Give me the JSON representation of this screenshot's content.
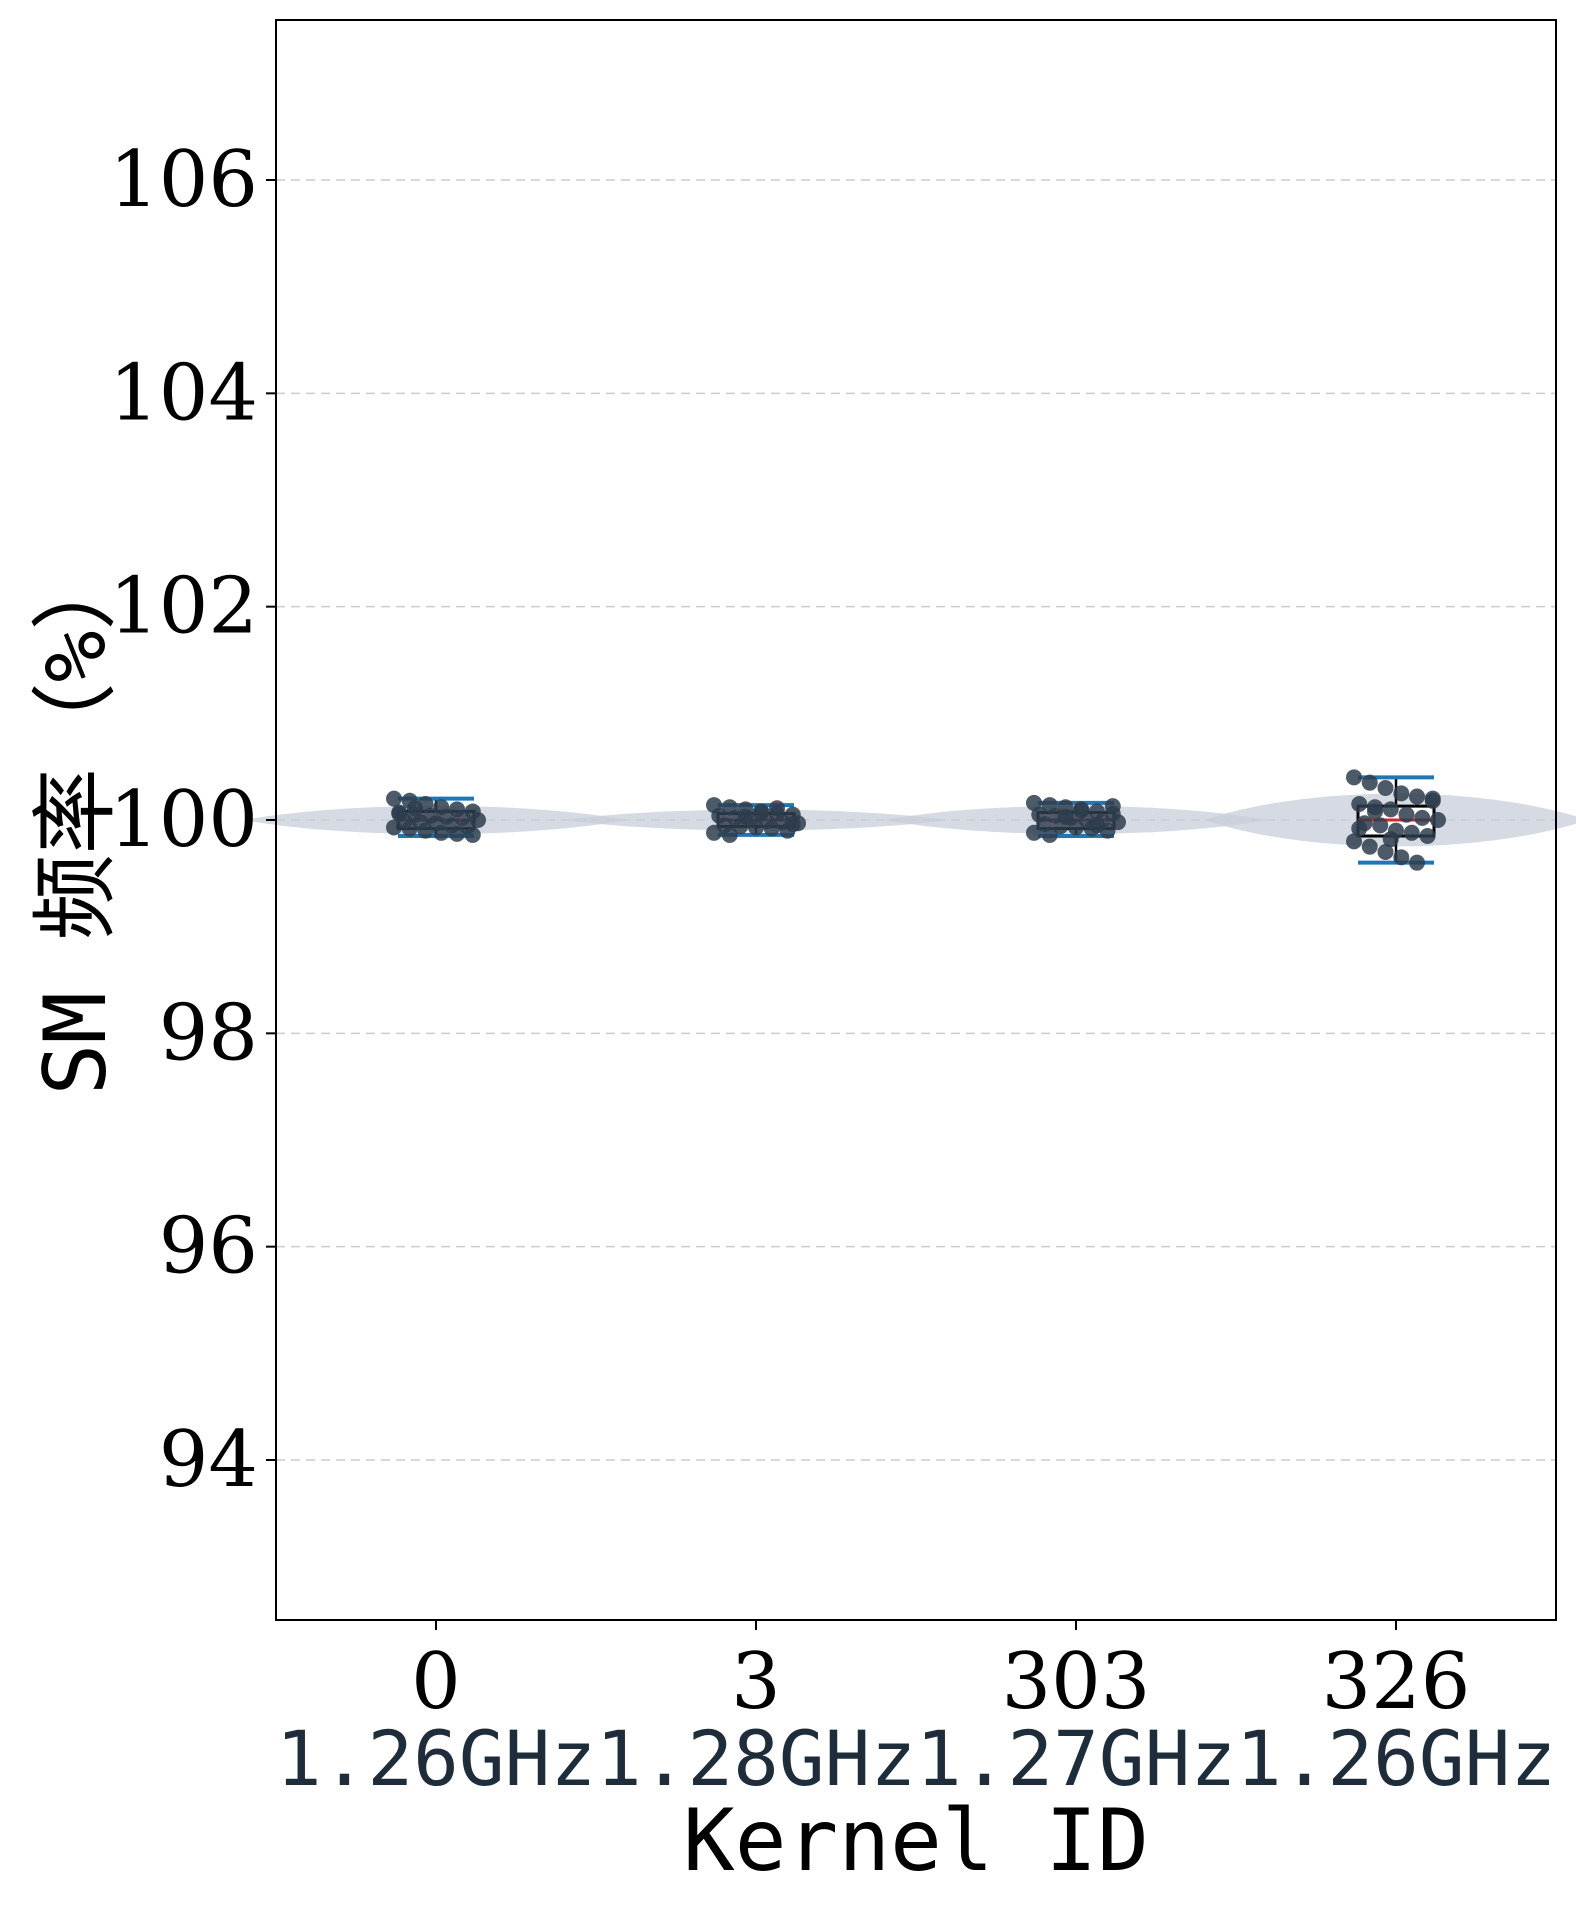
{
  "chart_data": {
    "type": "box-violin",
    "xlabel": "Kernel ID",
    "ylabel": "SM 频率（%）",
    "ylim": [
      92.5,
      107.5
    ],
    "yticks": [
      94,
      96,
      98,
      100,
      102,
      104,
      106
    ],
    "grid": "horizontal-dashed",
    "categories": [
      {
        "id": "0",
        "freq": "1.26GHz",
        "q1": 99.92,
        "median": 100.0,
        "q3": 100.08,
        "whisker_low": 99.85,
        "whisker_high": 100.2,
        "violin_halfwidth": 0.6,
        "points": [
          100.2,
          100.18,
          100.15,
          100.12,
          100.1,
          100.08,
          100.06,
          100.05,
          100.04,
          100.03,
          100.02,
          100.0,
          99.99,
          99.98,
          99.97,
          99.95,
          99.94,
          99.93,
          99.92,
          99.9,
          99.88,
          99.87,
          99.86,
          100.07,
          100.11
        ]
      },
      {
        "id": "3",
        "freq": "1.28GHz",
        "q1": 99.94,
        "median": 100.0,
        "q3": 100.06,
        "whisker_low": 99.86,
        "whisker_high": 100.14,
        "violin_halfwidth": 0.6,
        "points": [
          100.14,
          100.12,
          100.1,
          100.08,
          100.06,
          100.05,
          100.04,
          100.02,
          100.0,
          99.99,
          99.98,
          99.97,
          99.95,
          99.94,
          99.93,
          99.92,
          99.9,
          99.88,
          99.86,
          100.03,
          100.07,
          100.11,
          99.96
        ]
      },
      {
        "id": "303",
        "freq": "1.27GHz",
        "q1": 99.92,
        "median": 100.0,
        "q3": 100.07,
        "whisker_low": 99.85,
        "whisker_high": 100.16,
        "violin_halfwidth": 0.6,
        "points": [
          100.16,
          100.14,
          100.12,
          100.1,
          100.08,
          100.06,
          100.05,
          100.04,
          100.02,
          100.0,
          99.99,
          99.98,
          99.96,
          99.94,
          99.93,
          99.92,
          99.9,
          99.88,
          99.86,
          100.03,
          100.09,
          99.95,
          100.13
        ]
      },
      {
        "id": "326",
        "freq": "1.26GHz",
        "q1": 99.85,
        "median": 100.0,
        "q3": 100.13,
        "whisker_low": 99.6,
        "whisker_high": 100.4,
        "violin_halfwidth": 0.6,
        "points": [
          100.4,
          100.35,
          100.3,
          100.25,
          100.22,
          100.18,
          100.15,
          100.12,
          100.1,
          100.05,
          100.02,
          100.0,
          99.97,
          99.95,
          99.9,
          99.88,
          99.85,
          99.8,
          99.75,
          99.7,
          99.65,
          99.6,
          100.2,
          99.92,
          100.08,
          99.82
        ]
      }
    ],
    "colors": {
      "box_edge": "#000000",
      "box_fill": "#ffffff",
      "median": "#d62728",
      "whisker_cap": "#1f77b4",
      "points": "#2e3d4d",
      "violin": "#c8cdd8",
      "grid": "#cccccc"
    }
  }
}
